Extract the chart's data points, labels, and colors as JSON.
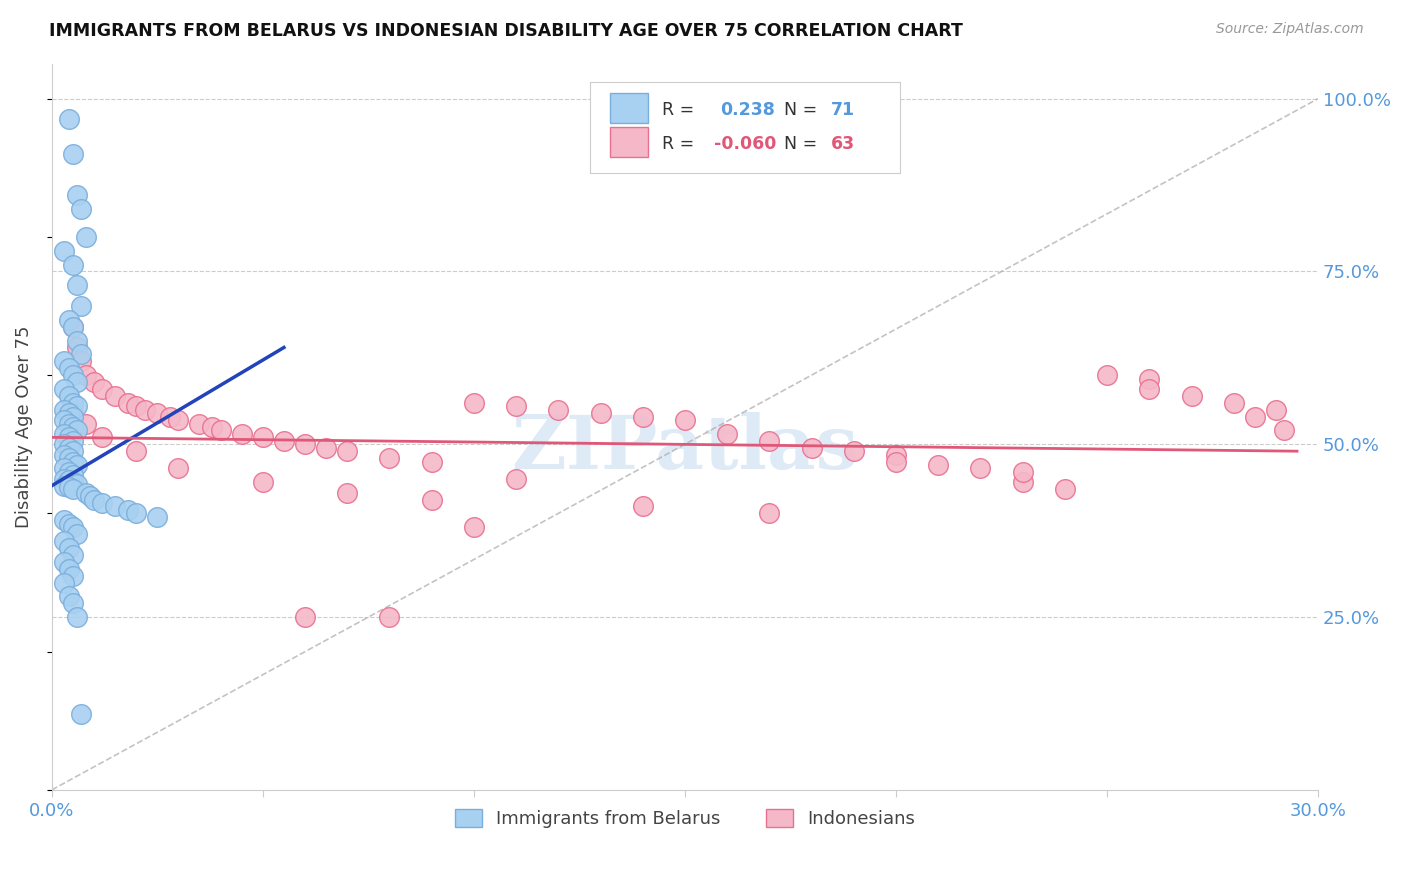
{
  "title": "IMMIGRANTS FROM BELARUS VS INDONESIAN DISABILITY AGE OVER 75 CORRELATION CHART",
  "source": "Source: ZipAtlas.com",
  "ylabel": "Disability Age Over 75",
  "blue_R": 0.238,
  "blue_N": 71,
  "pink_R": -0.06,
  "pink_N": 63,
  "blue_color": "#A8D0F0",
  "blue_edge_color": "#7AAEDC",
  "pink_color": "#F5B8C8",
  "pink_edge_color": "#E87090",
  "blue_line_color": "#2244BB",
  "pink_line_color": "#E05878",
  "diag_color": "#BBDDEE",
  "watermark_color": "#C8DCF0",
  "title_color": "#111111",
  "tick_color": "#5599DD",
  "grid_color": "#CCCCCC",
  "x_min": 0.0,
  "x_max": 0.3,
  "y_min": 0.0,
  "y_max": 1.05,
  "blue_scatter_x": [
    0.004,
    0.005,
    0.006,
    0.007,
    0.008,
    0.003,
    0.005,
    0.006,
    0.007,
    0.004,
    0.005,
    0.006,
    0.007,
    0.003,
    0.004,
    0.005,
    0.006,
    0.003,
    0.004,
    0.005,
    0.006,
    0.003,
    0.004,
    0.005,
    0.003,
    0.004,
    0.005,
    0.006,
    0.003,
    0.004,
    0.005,
    0.003,
    0.004,
    0.005,
    0.003,
    0.004,
    0.005,
    0.006,
    0.003,
    0.004,
    0.005,
    0.003,
    0.004,
    0.005,
    0.006,
    0.003,
    0.004,
    0.005,
    0.008,
    0.009,
    0.01,
    0.012,
    0.015,
    0.018,
    0.02,
    0.025,
    0.003,
    0.004,
    0.005,
    0.006,
    0.003,
    0.004,
    0.005,
    0.003,
    0.004,
    0.005,
    0.003,
    0.004,
    0.005,
    0.006,
    0.007
  ],
  "blue_scatter_y": [
    0.97,
    0.92,
    0.86,
    0.84,
    0.8,
    0.78,
    0.76,
    0.73,
    0.7,
    0.68,
    0.67,
    0.65,
    0.63,
    0.62,
    0.61,
    0.6,
    0.59,
    0.58,
    0.57,
    0.56,
    0.555,
    0.55,
    0.545,
    0.54,
    0.535,
    0.53,
    0.525,
    0.52,
    0.515,
    0.51,
    0.505,
    0.5,
    0.495,
    0.49,
    0.485,
    0.48,
    0.475,
    0.47,
    0.465,
    0.46,
    0.455,
    0.45,
    0.448,
    0.445,
    0.442,
    0.44,
    0.438,
    0.435,
    0.43,
    0.425,
    0.42,
    0.415,
    0.41,
    0.405,
    0.4,
    0.395,
    0.39,
    0.385,
    0.38,
    0.37,
    0.36,
    0.35,
    0.34,
    0.33,
    0.32,
    0.31,
    0.3,
    0.28,
    0.27,
    0.25,
    0.11
  ],
  "pink_scatter_x": [
    0.005,
    0.006,
    0.007,
    0.008,
    0.01,
    0.012,
    0.015,
    0.018,
    0.02,
    0.022,
    0.025,
    0.028,
    0.03,
    0.035,
    0.038,
    0.04,
    0.045,
    0.05,
    0.055,
    0.06,
    0.065,
    0.07,
    0.08,
    0.09,
    0.1,
    0.11,
    0.12,
    0.13,
    0.14,
    0.15,
    0.16,
    0.17,
    0.18,
    0.19,
    0.2,
    0.21,
    0.22,
    0.23,
    0.24,
    0.25,
    0.26,
    0.27,
    0.28,
    0.29,
    0.005,
    0.008,
    0.012,
    0.02,
    0.03,
    0.05,
    0.07,
    0.09,
    0.11,
    0.14,
    0.17,
    0.2,
    0.23,
    0.26,
    0.285,
    0.292,
    0.06,
    0.08,
    0.1
  ],
  "pink_scatter_y": [
    0.67,
    0.64,
    0.62,
    0.6,
    0.59,
    0.58,
    0.57,
    0.56,
    0.555,
    0.55,
    0.545,
    0.54,
    0.535,
    0.53,
    0.525,
    0.52,
    0.515,
    0.51,
    0.505,
    0.5,
    0.495,
    0.49,
    0.48,
    0.475,
    0.56,
    0.555,
    0.55,
    0.545,
    0.54,
    0.535,
    0.515,
    0.505,
    0.495,
    0.49,
    0.485,
    0.47,
    0.465,
    0.445,
    0.435,
    0.6,
    0.595,
    0.57,
    0.56,
    0.55,
    0.545,
    0.53,
    0.51,
    0.49,
    0.465,
    0.445,
    0.43,
    0.42,
    0.45,
    0.41,
    0.4,
    0.475,
    0.46,
    0.58,
    0.54,
    0.52,
    0.25,
    0.25,
    0.38
  ],
  "blue_line_x": [
    0.0,
    0.055
  ],
  "blue_line_y": [
    0.44,
    0.64
  ],
  "pink_line_x": [
    0.0,
    0.295
  ],
  "pink_line_y": [
    0.51,
    0.49
  ]
}
